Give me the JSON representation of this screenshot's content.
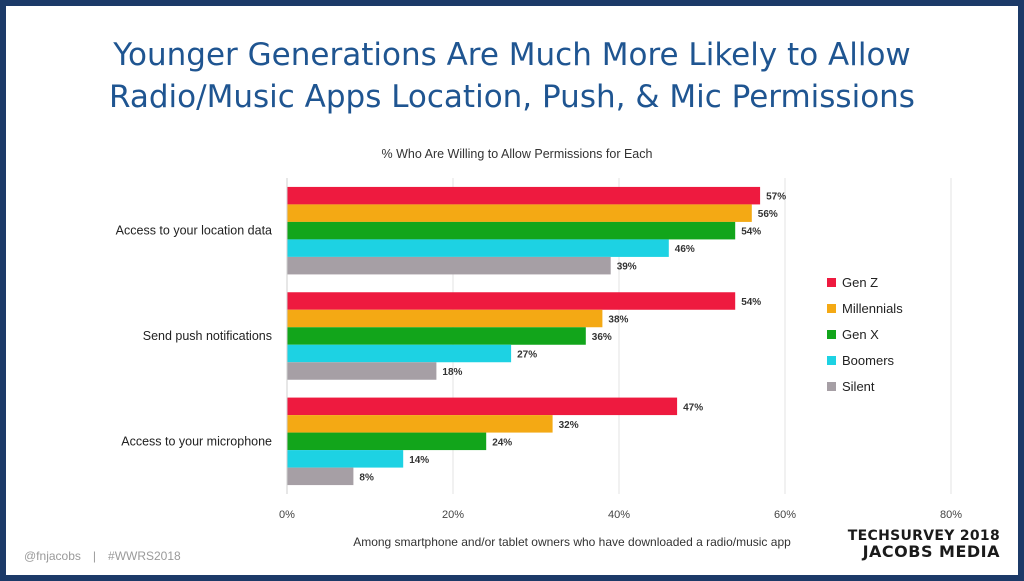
{
  "title_line1": "Younger Generations Are Much More Likely to Allow",
  "title_line2": "Radio/Music Apps Location, Push, & Mic Permissions",
  "footer": {
    "handle": "@fnjacobs",
    "separator": "|",
    "hashtag": "#WWRS2018"
  },
  "logo": {
    "line1": "TECHSURVEY 2018",
    "line2": "JACOBS MEDIA"
  },
  "chart_data": {
    "type": "bar",
    "orientation": "horizontal",
    "title": "% Who Are Willing to Allow Permissions for Each",
    "xlabel": "Among smartphone and/or tablet owners who have downloaded a radio/music app",
    "ylabel": "",
    "xlim": [
      0,
      80
    ],
    "x_ticks": [
      "0%",
      "20%",
      "40%",
      "60%",
      "80%"
    ],
    "grid": true,
    "legend_position": "right",
    "categories": [
      "Access to your location data",
      "Send push notifications",
      "Access to your microphone"
    ],
    "series": [
      {
        "name": "Gen Z",
        "color": "#ee1a3f",
        "values": [
          57,
          54,
          47
        ]
      },
      {
        "name": "Millennials",
        "color": "#f4a914",
        "values": [
          56,
          38,
          32
        ]
      },
      {
        "name": "Gen X",
        "color": "#12a51b",
        "values": [
          54,
          36,
          24
        ]
      },
      {
        "name": "Boomers",
        "color": "#1dd2e3",
        "values": [
          46,
          27,
          14
        ]
      },
      {
        "name": "Silent",
        "color": "#a69fa5",
        "values": [
          39,
          18,
          8
        ]
      }
    ],
    "value_suffix": "%"
  }
}
